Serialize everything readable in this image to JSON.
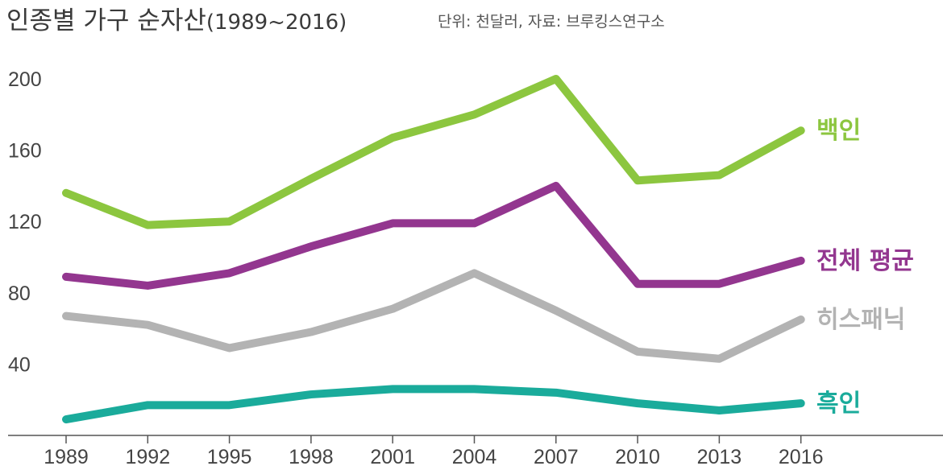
{
  "header": {
    "title": "인종별 가구 순자산",
    "title_years": "(1989~2016)",
    "note": "단위: 천달러, 자료: 브루킹스연구소"
  },
  "chart_data": {
    "type": "line",
    "title": "인종별 가구 순자산(1989~2016)",
    "unit_note": "단위: 천달러, 자료: 브루킹스연구소",
    "x": [
      "1989",
      "1992",
      "1995",
      "1998",
      "2001",
      "2004",
      "2007",
      "2010",
      "2013",
      "2016"
    ],
    "yticks": [
      "40",
      "80",
      "120",
      "160",
      "200"
    ],
    "ylim": [
      0,
      200
    ],
    "grid": false,
    "series": [
      {
        "name": "백인",
        "color": "#8cc63f",
        "values": [
          136,
          118,
          120,
          144,
          167,
          180,
          200,
          143,
          146,
          171
        ]
      },
      {
        "name": "전체 평균",
        "color": "#93368f",
        "values": [
          89,
          84,
          91,
          106,
          119,
          119,
          140,
          85,
          85,
          98
        ]
      },
      {
        "name": "히스패닉",
        "color": "#b3b3b3",
        "values": [
          67,
          62,
          49,
          58,
          71,
          91,
          70,
          47,
          43,
          65
        ]
      },
      {
        "name": "흑인",
        "color": "#1aab9b",
        "values": [
          9,
          17,
          17,
          23,
          26,
          26,
          24,
          18,
          14,
          18
        ]
      }
    ]
  }
}
